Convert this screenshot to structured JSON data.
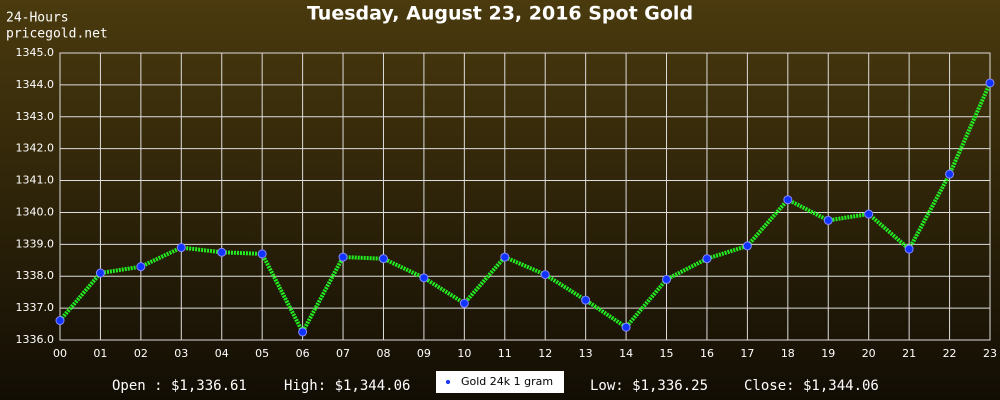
{
  "chart_data": {
    "type": "line",
    "title": "Tuesday, August 23, 2016 Spot Gold",
    "subtitle": [
      "24-Hours",
      "pricegold.net"
    ],
    "categories": [
      "00",
      "01",
      "02",
      "03",
      "04",
      "05",
      "06",
      "07",
      "08",
      "09",
      "10",
      "11",
      "12",
      "13",
      "14",
      "15",
      "16",
      "17",
      "18",
      "19",
      "20",
      "21",
      "22",
      "23"
    ],
    "series": [
      {
        "name": "Gold 24k 1 gram",
        "color": "#22ee22",
        "marker_color": "#1133ff",
        "values": [
          1336.61,
          1338.1,
          1338.3,
          1338.9,
          1338.75,
          1338.7,
          1336.25,
          1338.6,
          1338.55,
          1337.95,
          1337.15,
          1338.6,
          1338.05,
          1337.25,
          1336.4,
          1337.9,
          1338.55,
          1338.95,
          1340.4,
          1339.75,
          1339.95,
          1338.85,
          1341.2,
          1344.06
        ]
      }
    ],
    "ylim": [
      1336,
      1345
    ],
    "yticks": [
      {
        "value": 1336,
        "label": "1336.0"
      },
      {
        "value": 1337,
        "label": "1337.0"
      },
      {
        "value": 1338,
        "label": "1338.0"
      },
      {
        "value": 1339,
        "label": "1339.0"
      },
      {
        "value": 1340,
        "label": "1340.0"
      },
      {
        "value": 1341,
        "label": "1341.0"
      },
      {
        "value": 1342,
        "label": "1342.0"
      },
      {
        "value": 1343,
        "label": "1343.0"
      },
      {
        "value": 1344,
        "label": "1344.0"
      },
      {
        "value": 1345,
        "label": "1345.0"
      }
    ],
    "grid": true,
    "stats": [
      "Open : $1,336.61",
      "High: $1,344.06",
      "Low: $1,336.25",
      "Close: $1,344.06"
    ]
  }
}
